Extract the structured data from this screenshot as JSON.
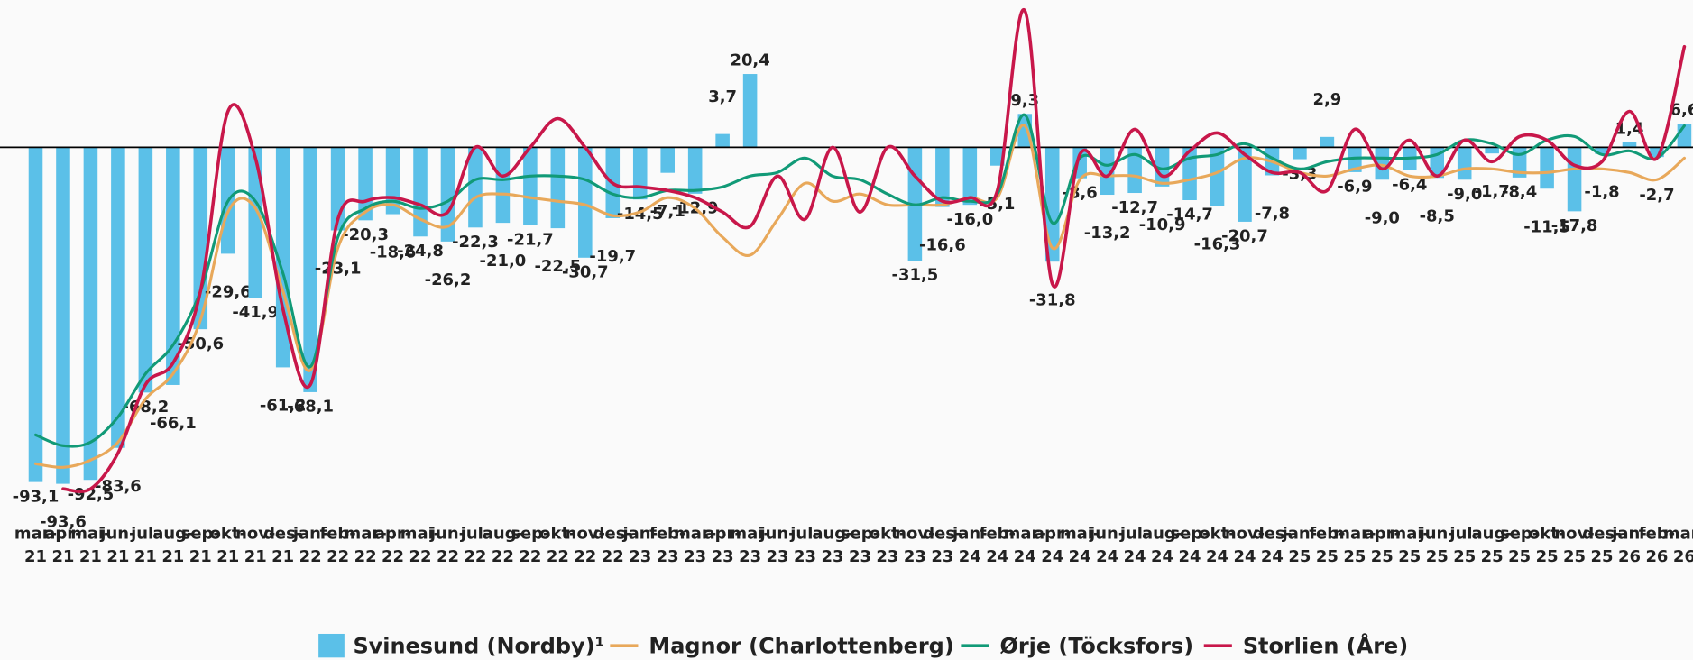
{
  "chart_data": {
    "type": "bar",
    "categories": [
      "mar-21",
      "apr-21",
      "mai-21",
      "jun-21",
      "jul-21",
      "aug-21",
      "sep-21",
      "okt-21",
      "nov-21",
      "des-21",
      "jan-22",
      "feb-22",
      "mar-22",
      "apr-22",
      "mai-22",
      "jun-22",
      "jul-22",
      "aug-22",
      "sep-22",
      "okt-22",
      "nov-22",
      "des-22",
      "jan-23",
      "feb-23",
      "mar-23",
      "apr-23",
      "mai-23",
      "jun-23",
      "jul-23",
      "aug-23",
      "sep-23",
      "okt-23",
      "nov-23",
      "des-23",
      "jan-24",
      "feb-24",
      "mar-24",
      "apr-24",
      "mai-24",
      "jun-24",
      "jul-24",
      "aug-24",
      "sep-24",
      "okt-24",
      "nov-24",
      "des-24",
      "jan-25",
      "feb-25",
      "mar-25",
      "apr-25",
      "mai-25",
      "jun-25",
      "jul-25",
      "aug-25",
      "sep-25",
      "okt-25",
      "nov-25",
      "des-25",
      "jan-26",
      "feb-26",
      "mar-26"
    ],
    "ylim": [
      -105,
      40
    ],
    "series": [
      {
        "name": "Svinesund (Nordby)¹",
        "color": "#5bc0e8",
        "kind": "bar",
        "values": [
          -93.1,
          -93.6,
          -92.5,
          -83.6,
          -68.2,
          -66.1,
          -50.6,
          -29.6,
          -41.9,
          -61.2,
          -68.1,
          -23.1,
          -20.3,
          -18.6,
          -24.8,
          -26.2,
          -22.3,
          -21.0,
          -21.7,
          -22.5,
          -30.7,
          -19.7,
          -14.5,
          -7.1,
          -12.9,
          3.7,
          20.4,
          null,
          null,
          null,
          null,
          null,
          -31.5,
          -16.6,
          -16.0,
          -5.1,
          9.3,
          -31.8,
          -8.6,
          -13.2,
          -12.7,
          -10.9,
          -14.7,
          -16.3,
          -20.7,
          -7.8,
          -3.3,
          2.9,
          -6.9,
          -9.0,
          -6.4,
          -8.5,
          -9.0,
          -1.7,
          -8.4,
          -11.5,
          -17.8,
          -1.8,
          1.4,
          -2.7,
          6.6
        ],
        "value_labels": [
          "-93,1",
          "-93,6",
          "-92,5",
          "-83,6",
          "-68,2",
          "-66,1",
          "-50,6",
          "-29,6",
          "-41,9",
          "-61,2",
          "-68,1",
          "-23,1",
          "-20,3",
          "-18,6",
          "-24,8",
          "-26,2",
          "-22,3",
          "-21,0",
          "-21,7",
          "-22,5",
          "-30,7",
          "-19,7",
          "-14,5",
          "-7,1",
          "-12,9",
          "3,7",
          "20,4",
          null,
          null,
          null,
          null,
          null,
          "-31,5",
          "-16,6",
          "-16,0",
          "-5,1",
          "9,3",
          "-31,8",
          "-8,6",
          "-13,2",
          "-12,7",
          "-10,9",
          "-14,7",
          "-16,3",
          "-20,7",
          "-7,8",
          "-3,3",
          "2,9",
          "-6,9",
          "-9,0",
          "-6,4",
          "-8,5",
          "-9,0",
          "-1,7",
          "-8,4",
          "-11,5",
          "-17,8",
          "-1,8",
          "1,4",
          "-2,7",
          "6,6"
        ]
      },
      {
        "name": "Magnor (Charlottenberg)",
        "color": "#e8a85a",
        "kind": "line",
        "values": [
          -88,
          -89,
          -87,
          -82,
          -70,
          -63,
          -48,
          -18,
          -17,
          -40,
          -62,
          -28,
          -18,
          -16,
          -20,
          -22,
          -14,
          -13,
          -14,
          -15,
          -16,
          -19,
          -18,
          -14,
          -17,
          -25,
          -30,
          -20,
          -10,
          -15,
          -13,
          -16,
          -16,
          -16,
          -14,
          -14,
          6,
          -28,
          -9,
          -8,
          -8,
          -10,
          -9,
          -7,
          -3,
          -4,
          -7,
          -8,
          -6,
          -5,
          -8,
          -8,
          -6,
          -6,
          -7,
          -7,
          -6,
          -6,
          -7,
          -9,
          -3
        ]
      },
      {
        "name": "Ørje (Töcksfors)",
        "color": "#119a77",
        "kind": "line",
        "values": [
          -80,
          -83,
          -82,
          -75,
          -63,
          -55,
          -40,
          -15,
          -15,
          -35,
          -61,
          -25,
          -17,
          -15,
          -17,
          -15,
          -9,
          -9,
          -8,
          -8,
          -9,
          -13,
          -14,
          -12,
          -12,
          -11,
          -8,
          -7,
          -3,
          -8,
          -9,
          -13,
          -16,
          -14,
          -15,
          -13,
          9,
          -21,
          -3,
          -5,
          -2,
          -6,
          -3,
          -2,
          1,
          -3,
          -6,
          -4,
          -3,
          -3,
          -3,
          -2,
          2,
          1,
          -2,
          2,
          3,
          -2,
          -1,
          -3,
          6
        ]
      },
      {
        "name": "Storlien (Åre)",
        "color": "#c8174a",
        "kind": "line",
        "values": [
          null,
          -95,
          -95,
          -85,
          -66,
          -60,
          -40,
          10,
          -3,
          -45,
          -66,
          -20,
          -15,
          -14,
          -16,
          -18,
          0,
          -8,
          0,
          8,
          0,
          -10,
          -11,
          -12,
          -14,
          -18,
          -22,
          -8,
          -20,
          0,
          -18,
          0,
          -8,
          -15,
          -14,
          -12,
          38,
          -38,
          -2,
          -8,
          5,
          -8,
          -1,
          4,
          -2,
          -7,
          -7,
          -12,
          5,
          -6,
          2,
          -8,
          2,
          -4,
          3,
          2,
          -5,
          -4,
          10,
          -3,
          28
        ]
      }
    ]
  }
}
